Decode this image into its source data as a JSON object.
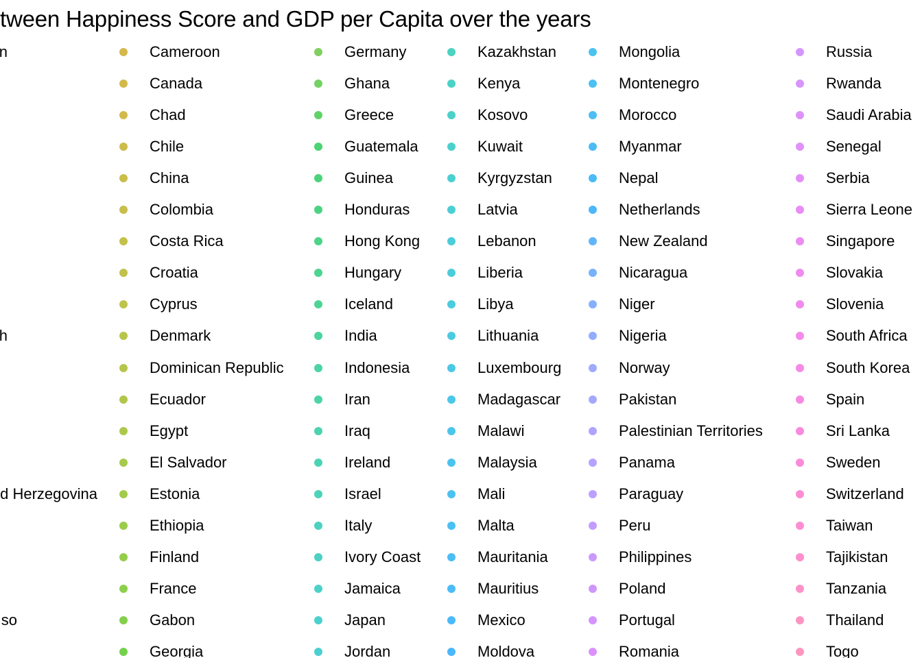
{
  "chart_data": {
    "type": "scatter",
    "title": "tween Happiness Score and GDP per Capita over the years",
    "xlabel": "",
    "ylabel": "",
    "legend_placement": "full-page",
    "legend_columns": [
      {
        "entries": [
          {
            "name": "n",
            "color": "#ff6c91"
          },
          {
            "name": "",
            "color": "#fb7280"
          },
          {
            "name": "",
            "color": "#f8766d"
          },
          {
            "name": "",
            "color": "#f37b59"
          },
          {
            "name": "",
            "color": "#ed8141"
          },
          {
            "name": "",
            "color": "#e7861b"
          },
          {
            "name": "",
            "color": "#e08b00"
          },
          {
            "name": "",
            "color": "#d89000"
          },
          {
            "name": "",
            "color": "#cf9400"
          },
          {
            "name": "h",
            "color": "#c59900"
          },
          {
            "name": "",
            "color": "#bb9d00"
          },
          {
            "name": "",
            "color": "#b0a100"
          },
          {
            "name": "",
            "color": "#c7a000"
          },
          {
            "name": "",
            "color": "#c3a000"
          },
          {
            "name": "d Herzegovina",
            "color": "#c0a200"
          },
          {
            "name": "",
            "color": "#bca300"
          },
          {
            "name": "",
            "color": "#b9a400"
          },
          {
            "name": "",
            "color": "#b5a500"
          },
          {
            "name": "so",
            "color": "#b2a600"
          },
          {
            "name": "",
            "color": "#aea700"
          }
        ]
      },
      {
        "entries": [
          {
            "name": "Cameroon",
            "color": "#c39a00"
          },
          {
            "name": "Canada",
            "color": "#c09b00"
          },
          {
            "name": "Chad",
            "color": "#bc9d00"
          },
          {
            "name": "Chile",
            "color": "#b89f00"
          },
          {
            "name": "China",
            "color": "#b4a100"
          },
          {
            "name": "Colombia",
            "color": "#afa300"
          },
          {
            "name": "Costa Rica",
            "color": "#aba500"
          },
          {
            "name": "Croatia",
            "color": "#a6a700"
          },
          {
            "name": "Cyprus",
            "color": "#a1a900"
          },
          {
            "name": "Denmark",
            "color": "#9bab00"
          },
          {
            "name": "Dominican Republic",
            "color": "#96ad00"
          },
          {
            "name": "Ecuador",
            "color": "#8faf00"
          },
          {
            "name": "Egypt",
            "color": "#89b100"
          },
          {
            "name": "El Salvador",
            "color": "#82b300"
          },
          {
            "name": "Estonia",
            "color": "#7ab500"
          },
          {
            "name": "Ethiopia",
            "color": "#71b700"
          },
          {
            "name": "Finland",
            "color": "#67b800"
          },
          {
            "name": "France",
            "color": "#5bba00"
          },
          {
            "name": "Gabon",
            "color": "#4dbb00"
          },
          {
            "name": "Georgia",
            "color": "#3bbd00"
          }
        ]
      },
      {
        "entries": [
          {
            "name": "Germany",
            "color": "#4dbb1e"
          },
          {
            "name": "Ghana",
            "color": "#3bbd22"
          },
          {
            "name": "Greece",
            "color": "#1ebf27"
          },
          {
            "name": "Guatemala",
            "color": "#00c036"
          },
          {
            "name": "Guinea",
            "color": "#00c142"
          },
          {
            "name": "Honduras",
            "color": "#00c14d"
          },
          {
            "name": "Hong Kong",
            "color": "#00c257"
          },
          {
            "name": "Hungary",
            "color": "#00c261"
          },
          {
            "name": "Iceland",
            "color": "#00c26a"
          },
          {
            "name": "India",
            "color": "#00c273"
          },
          {
            "name": "Indonesia",
            "color": "#00c27c"
          },
          {
            "name": "Iran",
            "color": "#00c285"
          },
          {
            "name": "Iraq",
            "color": "#00c18d"
          },
          {
            "name": "Ireland",
            "color": "#00c195"
          },
          {
            "name": "Israel",
            "color": "#00c09d"
          },
          {
            "name": "Italy",
            "color": "#00bfa4"
          },
          {
            "name": "Ivory Coast",
            "color": "#00beab"
          },
          {
            "name": "Jamaica",
            "color": "#00bdb2"
          },
          {
            "name": "Japan",
            "color": "#00bcb9"
          },
          {
            "name": "Jordan",
            "color": "#00bbbf"
          }
        ]
      },
      {
        "entries": [
          {
            "name": "Kazakhstan",
            "color": "#00c0a8"
          },
          {
            "name": "Kenya",
            "color": "#00bfae"
          },
          {
            "name": "Kosovo",
            "color": "#00bdb3"
          },
          {
            "name": "Kuwait",
            "color": "#00bcb8"
          },
          {
            "name": "Kyrgyzstan",
            "color": "#00bbbd"
          },
          {
            "name": "Latvia",
            "color": "#00bac2"
          },
          {
            "name": "Lebanon",
            "color": "#00b8c7"
          },
          {
            "name": "Liberia",
            "color": "#00b7cc"
          },
          {
            "name": "Libya",
            "color": "#00b5d1"
          },
          {
            "name": "Lithuania",
            "color": "#00b3d6"
          },
          {
            "name": "Luxembourg",
            "color": "#00b1da"
          },
          {
            "name": "Madagascar",
            "color": "#00afdf"
          },
          {
            "name": "Malawi",
            "color": "#00ade3"
          },
          {
            "name": "Malaysia",
            "color": "#00aae7"
          },
          {
            "name": "Mali",
            "color": "#00a8eb"
          },
          {
            "name": "Malta",
            "color": "#00a5ee"
          },
          {
            "name": "Mauritania",
            "color": "#00a2f1"
          },
          {
            "name": "Mauritius",
            "color": "#009ff4"
          },
          {
            "name": "Mexico",
            "color": "#009cf6"
          },
          {
            "name": "Moldova",
            "color": "#0098f8"
          }
        ]
      },
      {
        "entries": [
          {
            "name": "Mongolia",
            "color": "#00a9e7"
          },
          {
            "name": "Montenegro",
            "color": "#00a6eb"
          },
          {
            "name": "Morocco",
            "color": "#00a3ee"
          },
          {
            "name": "Myanmar",
            "color": "#00a0f1"
          },
          {
            "name": "Nepal",
            "color": "#009cf4"
          },
          {
            "name": "Netherlands",
            "color": "#0099f6"
          },
          {
            "name": "New Zealand",
            "color": "#1d96f8"
          },
          {
            "name": "Nicaragua",
            "color": "#3d92fa"
          },
          {
            "name": "Niger",
            "color": "#538efc"
          },
          {
            "name": "Nigeria",
            "color": "#648afd"
          },
          {
            "name": "Norway",
            "color": "#7386fe"
          },
          {
            "name": "Pakistan",
            "color": "#8082ff"
          },
          {
            "name": "Palestinian Territories",
            "color": "#8c7eff"
          },
          {
            "name": "Panama",
            "color": "#977aff"
          },
          {
            "name": "Paraguay",
            "color": "#a176ff"
          },
          {
            "name": "Peru",
            "color": "#aa72ff"
          },
          {
            "name": "Philippines",
            "color": "#b36efe"
          },
          {
            "name": "Poland",
            "color": "#bb6afd"
          },
          {
            "name": "Portugal",
            "color": "#c366fc"
          },
          {
            "name": "Romania",
            "color": "#ca63fa"
          }
        ]
      },
      {
        "entries": [
          {
            "name": "Russia",
            "color": "#c26afc"
          },
          {
            "name": "Rwanda",
            "color": "#c867fa"
          },
          {
            "name": "Saudi Arabia",
            "color": "#ce64f8"
          },
          {
            "name": "Senegal",
            "color": "#d462f6"
          },
          {
            "name": "Serbia",
            "color": "#d95ff3"
          },
          {
            "name": "Sierra Leone",
            "color": "#de5df0"
          },
          {
            "name": "Singapore",
            "color": "#e35bec"
          },
          {
            "name": "Slovakia",
            "color": "#e75ae8"
          },
          {
            "name": "Slovenia",
            "color": "#eb59e4"
          },
          {
            "name": "South Africa",
            "color": "#ef58df"
          },
          {
            "name": "South Korea",
            "color": "#f258da"
          },
          {
            "name": "Spain",
            "color": "#f558d5"
          },
          {
            "name": "Sri Lanka",
            "color": "#f759cf"
          },
          {
            "name": "Sweden",
            "color": "#f95ac9"
          },
          {
            "name": "Switzerland",
            "color": "#fb5cc3"
          },
          {
            "name": "Taiwan",
            "color": "#fc5ebd"
          },
          {
            "name": "Tajikistan",
            "color": "#fd60b6"
          },
          {
            "name": "Tanzania",
            "color": "#fe63b0"
          },
          {
            "name": "Thailand",
            "color": "#fe66a9"
          },
          {
            "name": "Togo",
            "color": "#ff69a2"
          }
        ]
      }
    ]
  }
}
